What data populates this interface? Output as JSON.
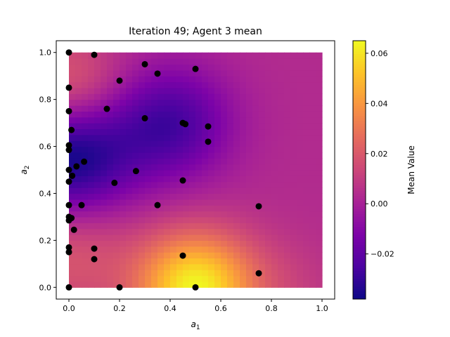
{
  "chart_data": {
    "type": "heatmap",
    "title": "Iteration 49; Agent 3 mean",
    "xlabel": "a",
    "xlabel_sub": "1",
    "ylabel": "a",
    "ylabel_sub": "2",
    "xlim": [
      -0.05,
      1.05
    ],
    "ylim": [
      -0.05,
      1.05
    ],
    "grid": false,
    "colormap": "plasma",
    "x_ticks": [
      {
        "value": 0.0,
        "label": "0.0"
      },
      {
        "value": 0.2,
        "label": "0.2"
      },
      {
        "value": 0.4,
        "label": "0.4"
      },
      {
        "value": 0.6,
        "label": "0.6"
      },
      {
        "value": 0.8,
        "label": "0.8"
      },
      {
        "value": 1.0,
        "label": "1.0"
      }
    ],
    "y_ticks": [
      {
        "value": 0.0,
        "label": "0.0"
      },
      {
        "value": 0.2,
        "label": "0.2"
      },
      {
        "value": 0.4,
        "label": "0.4"
      },
      {
        "value": 0.6,
        "label": "0.6"
      },
      {
        "value": 0.8,
        "label": "0.8"
      },
      {
        "value": 1.0,
        "label": "1.0"
      }
    ],
    "colorbar": {
      "label": "Mean Value",
      "min": -0.038,
      "max": 0.065,
      "ticks": [
        {
          "value": -0.02,
          "label": "−0.02"
        },
        {
          "value": 0.0,
          "label": "0.00"
        },
        {
          "value": 0.02,
          "label": "0.02"
        },
        {
          "value": 0.04,
          "label": "0.04"
        },
        {
          "value": 0.06,
          "label": "0.06"
        }
      ]
    },
    "surface_features": [
      {
        "x": 0.5,
        "y": 0.0,
        "value": 0.064,
        "spread": 0.16
      },
      {
        "x": 0.0,
        "y": 0.55,
        "value": -0.038,
        "spread": 0.18
      },
      {
        "x": 0.4,
        "y": 0.7,
        "value": -0.026,
        "spread": 0.17
      },
      {
        "x": 0.0,
        "y": 0.85,
        "value": 0.024,
        "spread": 0.15
      },
      {
        "x": 0.0,
        "y": 0.15,
        "value": 0.02,
        "spread": 0.18
      },
      {
        "x": 0.85,
        "y": 0.0,
        "value": 0.01,
        "spread": 0.15
      }
    ],
    "baseline_value": 0.004,
    "points": [
      {
        "x": 0.0,
        "y": 1.0
      },
      {
        "x": 0.1,
        "y": 0.99
      },
      {
        "x": 0.3,
        "y": 0.95
      },
      {
        "x": 0.35,
        "y": 0.91
      },
      {
        "x": 0.5,
        "y": 0.93
      },
      {
        "x": 0.2,
        "y": 0.88
      },
      {
        "x": 0.0,
        "y": 0.85
      },
      {
        "x": 0.0,
        "y": 0.75
      },
      {
        "x": 0.15,
        "y": 0.76
      },
      {
        "x": 0.3,
        "y": 0.72
      },
      {
        "x": 0.45,
        "y": 0.7
      },
      {
        "x": 0.46,
        "y": 0.695
      },
      {
        "x": 0.55,
        "y": 0.685
      },
      {
        "x": 0.01,
        "y": 0.67
      },
      {
        "x": 0.55,
        "y": 0.62
      },
      {
        "x": 0.0,
        "y": 0.605
      },
      {
        "x": 0.0,
        "y": 0.585
      },
      {
        "x": 0.06,
        "y": 0.535
      },
      {
        "x": 0.03,
        "y": 0.515
      },
      {
        "x": 0.265,
        "y": 0.495
      },
      {
        "x": 0.0,
        "y": 0.5
      },
      {
        "x": 0.013,
        "y": 0.475
      },
      {
        "x": 0.0,
        "y": 0.45
      },
      {
        "x": 0.18,
        "y": 0.445
      },
      {
        "x": 0.45,
        "y": 0.455
      },
      {
        "x": 0.0,
        "y": 0.35
      },
      {
        "x": 0.05,
        "y": 0.35
      },
      {
        "x": 0.35,
        "y": 0.35
      },
      {
        "x": 0.75,
        "y": 0.345
      },
      {
        "x": 0.0,
        "y": 0.3
      },
      {
        "x": 0.01,
        "y": 0.295
      },
      {
        "x": 0.0,
        "y": 0.285
      },
      {
        "x": 0.02,
        "y": 0.245
      },
      {
        "x": 0.0,
        "y": 0.17
      },
      {
        "x": 0.0,
        "y": 0.15
      },
      {
        "x": 0.1,
        "y": 0.165
      },
      {
        "x": 0.1,
        "y": 0.12
      },
      {
        "x": 0.45,
        "y": 0.135
      },
      {
        "x": 0.75,
        "y": 0.06
      },
      {
        "x": 0.0,
        "y": 0.0
      },
      {
        "x": 0.2,
        "y": 0.0
      },
      {
        "x": 0.5,
        "y": 0.0
      }
    ],
    "point_color": "#000000"
  }
}
